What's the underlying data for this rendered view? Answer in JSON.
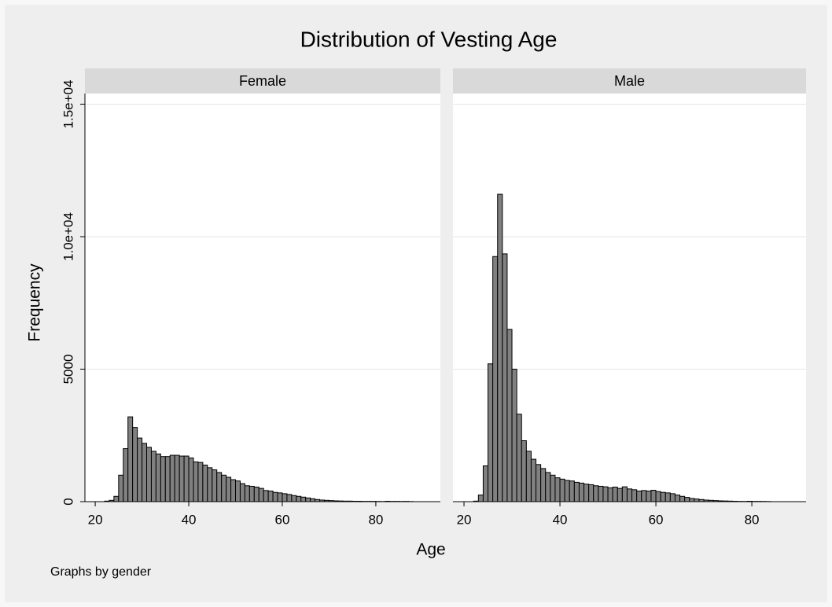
{
  "title": "Distribution of Vesting Age",
  "x_label": "Age",
  "y_label": "Frequency",
  "note": "Graphs by gender",
  "chart_data": [
    {
      "type": "histogram",
      "title": "Female",
      "color": "#808080",
      "bins": [
        22,
        23,
        24,
        25,
        26,
        27,
        28,
        29,
        30,
        31,
        32,
        33,
        34,
        35,
        36,
        37,
        38,
        39,
        40,
        41,
        42,
        43,
        44,
        45,
        46,
        47,
        48,
        49,
        50,
        51,
        52,
        53,
        54,
        55,
        56,
        57,
        58,
        59,
        60,
        61,
        62,
        63,
        64,
        65,
        66,
        67,
        68,
        69,
        70,
        71,
        72,
        73,
        74,
        75,
        76,
        77,
        78,
        79,
        80,
        81,
        82,
        83,
        84,
        85,
        86,
        87,
        88
      ],
      "values": [
        20,
        50,
        200,
        1000,
        2000,
        3200,
        2800,
        2400,
        2200,
        2050,
        1900,
        1800,
        1700,
        1700,
        1750,
        1750,
        1720,
        1720,
        1650,
        1500,
        1480,
        1380,
        1280,
        1200,
        1100,
        1000,
        920,
        830,
        780,
        680,
        600,
        580,
        550,
        500,
        420,
        400,
        350,
        330,
        300,
        270,
        230,
        200,
        170,
        140,
        110,
        80,
        60,
        50,
        40,
        30,
        25,
        20,
        20,
        15,
        15,
        10,
        10,
        10,
        8,
        5,
        15,
        10,
        10,
        8,
        10,
        5
      ],
      "xlim": [
        17.8,
        93.8
      ],
      "xticks": [
        20,
        40,
        60,
        80
      ],
      "ylim": [
        0,
        15400
      ],
      "yticks": [
        0,
        5000,
        {
          "value": 10000,
          "label": "1.0e+04"
        },
        {
          "value": 15000,
          "label": "1.5e+04"
        }
      ],
      "grid": true
    },
    {
      "type": "histogram",
      "title": "Male",
      "color": "#808080",
      "bins": [
        22,
        23,
        24,
        25,
        26,
        27,
        28,
        29,
        30,
        31,
        32,
        33,
        34,
        35,
        36,
        37,
        38,
        39,
        40,
        41,
        42,
        43,
        44,
        45,
        46,
        47,
        48,
        49,
        50,
        51,
        52,
        53,
        54,
        55,
        56,
        57,
        58,
        59,
        60,
        61,
        62,
        63,
        64,
        65,
        66,
        67,
        68,
        69,
        70,
        71,
        72,
        73,
        74,
        75,
        76,
        77,
        78,
        79,
        80,
        81,
        82,
        83,
        84
      ],
      "values": [
        20,
        250,
        1350,
        5200,
        9250,
        11600,
        9350,
        6500,
        5000,
        3300,
        2300,
        1900,
        1600,
        1400,
        1250,
        1100,
        1000,
        900,
        850,
        800,
        780,
        730,
        700,
        660,
        640,
        600,
        580,
        560,
        520,
        550,
        500,
        560,
        480,
        450,
        400,
        420,
        400,
        430,
        380,
        350,
        330,
        300,
        250,
        200,
        160,
        120,
        100,
        80,
        60,
        50,
        40,
        30,
        25,
        20,
        15,
        10,
        8,
        15,
        10,
        10,
        8,
        5
      ],
      "xlim": [
        17.7,
        91.3
      ],
      "xticks": [
        20,
        40,
        60,
        80
      ],
      "ylim": [
        0,
        15400
      ],
      "yticks": [
        0,
        5000,
        10000,
        15000
      ],
      "grid": true
    }
  ]
}
